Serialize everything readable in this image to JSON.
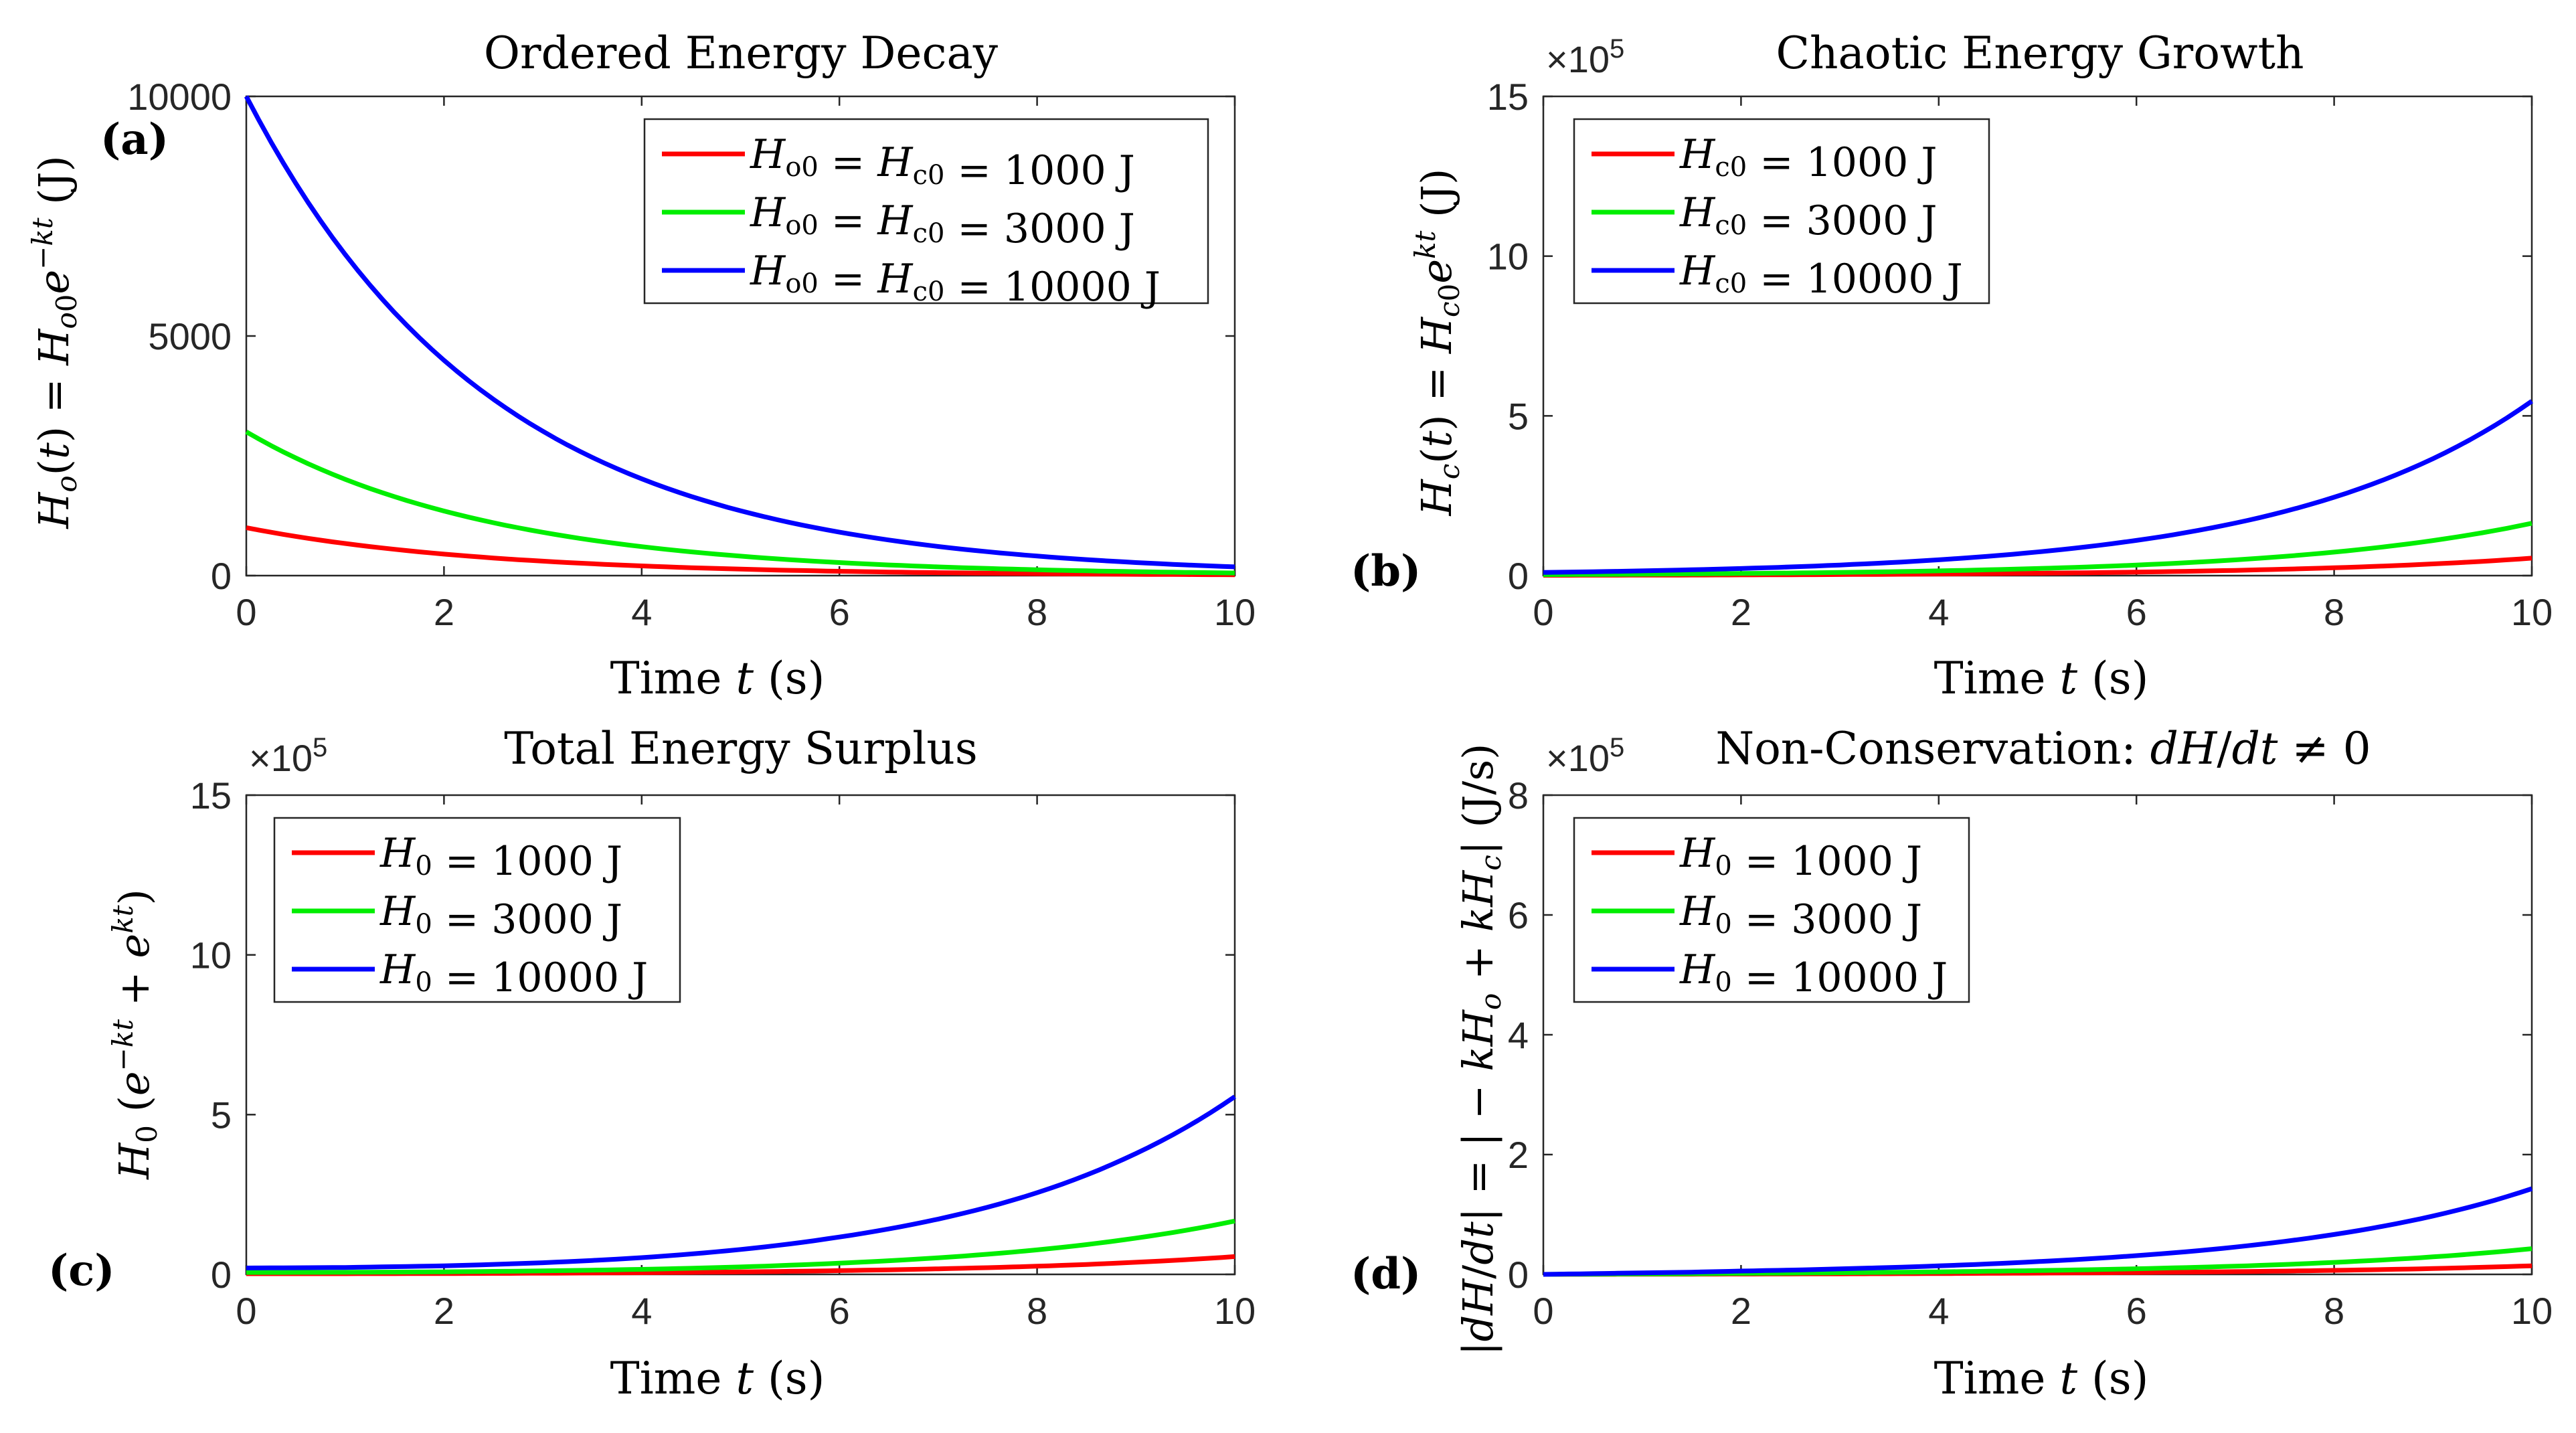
{
  "chart_data": [
    {
      "type": "line",
      "panel": "(a)",
      "title": "Ordered Energy Decay",
      "xlabel": "Time t (s)",
      "ylabel": "H_o(t) = H_o0 e^{-kt} (J)",
      "xlim": [
        0,
        10
      ],
      "ylim": [
        0,
        10000
      ],
      "xticks": [
        "0",
        "2",
        "4",
        "6",
        "8",
        "10"
      ],
      "yticks": [
        "0",
        "5000",
        "10000"
      ],
      "exponent": "",
      "grid": false,
      "legend_placement": "top-right",
      "series": [
        {
          "name": "H_o0 = H_c0 = 1000 J",
          "color": "#ff0000",
          "x": [
            0,
            1,
            2,
            3,
            4,
            5,
            6,
            7,
            8,
            9,
            10
          ],
          "y": [
            1000,
            670,
            449,
            301,
            202,
            135,
            91,
            61,
            41,
            27,
            18
          ]
        },
        {
          "name": "H_o0 = H_c0 = 3000 J",
          "color": "#00ee00",
          "x": [
            0,
            1,
            2,
            3,
            4,
            5,
            6,
            7,
            8,
            9,
            10
          ],
          "y": [
            3000,
            2010,
            1348,
            903,
            605,
            406,
            272,
            182,
            122,
            82,
            55
          ]
        },
        {
          "name": "H_o0 = H_c0 = 10000 J",
          "color": "#0000ff",
          "x": [
            0,
            1,
            2,
            3,
            4,
            5,
            6,
            7,
            8,
            9,
            10
          ],
          "y": [
            10000,
            6703,
            4493,
            3012,
            2019,
            1353,
            907,
            608,
            408,
            273,
            183
          ]
        }
      ]
    },
    {
      "type": "line",
      "panel": "(b)",
      "title": "Chaotic Energy Growth",
      "xlabel": "Time t (s)",
      "ylabel": "H_c(t) = H_c0 e^{kt} (J)",
      "xlim": [
        0,
        10
      ],
      "ylim": [
        0,
        15
      ],
      "xticks": [
        "0",
        "2",
        "4",
        "6",
        "8",
        "10"
      ],
      "yticks": [
        "0",
        "5",
        "10",
        "15"
      ],
      "exponent": "5",
      "grid": false,
      "legend_placement": "top-left",
      "series": [
        {
          "name": "H_c0 = 1000 J",
          "color": "#ff0000",
          "x": [
            0,
            1,
            2,
            3,
            4,
            5,
            6,
            7,
            8,
            9,
            10
          ],
          "y": [
            0.01,
            0.0149,
            0.0223,
            0.0332,
            0.0495,
            0.0739,
            0.1102,
            0.1644,
            0.2453,
            0.3659,
            0.546
          ]
        },
        {
          "name": "H_c0 = 3000 J",
          "color": "#00ee00",
          "x": [
            0,
            1,
            2,
            3,
            4,
            5,
            6,
            7,
            8,
            9,
            10
          ],
          "y": [
            0.03,
            0.0448,
            0.0668,
            0.0996,
            0.1486,
            0.2217,
            0.3307,
            0.4933,
            0.7358,
            1.0977,
            1.6379
          ]
        },
        {
          "name": "H_c0 = 10000 J",
          "color": "#0000ff",
          "x": [
            0,
            1,
            2,
            3,
            4,
            5,
            6,
            7,
            8,
            9,
            10
          ],
          "y": [
            0.1,
            0.1492,
            0.2226,
            0.332,
            0.4953,
            0.7389,
            1.1023,
            1.6444,
            2.4533,
            3.6598,
            5.4598
          ]
        }
      ]
    },
    {
      "type": "line",
      "panel": "(c)",
      "title": "Total Energy Surplus",
      "xlabel": "Time t (s)",
      "ylabel": "H_0 (e^{-kt} + e^{kt})",
      "xlim": [
        0,
        10
      ],
      "ylim": [
        0,
        15
      ],
      "xticks": [
        "0",
        "2",
        "4",
        "6",
        "8",
        "10"
      ],
      "yticks": [
        "0",
        "5",
        "10",
        "15"
      ],
      "exponent": "5",
      "grid": false,
      "legend_placement": "top-left",
      "series": [
        {
          "name": "H_0 = 1000 J",
          "color": "#ff0000",
          "x": [
            0,
            1,
            2,
            3,
            4,
            5,
            6,
            7,
            8,
            9,
            10
          ],
          "y": [
            0.02,
            0.0216,
            0.0267,
            0.0364,
            0.0524,
            0.0778,
            0.117,
            0.1731,
            0.2557,
            0.3784,
            0.5563
          ]
        },
        {
          "name": "H_0 = 3000 J",
          "color": "#00ee00",
          "x": [
            0,
            1,
            2,
            3,
            4,
            5,
            6,
            7,
            8,
            9,
            10
          ],
          "y": [
            0.06,
            0.0649,
            0.0801,
            0.1091,
            0.1573,
            0.2335,
            0.351,
            0.5193,
            0.7671,
            1.1352,
            1.6689
          ]
        },
        {
          "name": "H_0 = 10000 J",
          "color": "#0000ff",
          "x": [
            0,
            1,
            2,
            3,
            4,
            5,
            6,
            7,
            8,
            9,
            10
          ],
          "y": [
            0.2,
            0.2163,
            0.267,
            0.3637,
            0.5244,
            0.7783,
            1.1699,
            1.731,
            2.557,
            3.784,
            5.563
          ]
        }
      ]
    },
    {
      "type": "line",
      "panel": "(d)",
      "title": "Non-Conservation: dH/dt ≠ 0",
      "xlabel": "Time t (s)",
      "ylabel": "|dH/dt| = | - kH_o + kH_c| (J/s)",
      "xlim": [
        0,
        10
      ],
      "ylim": [
        0,
        8
      ],
      "xticks": [
        "0",
        "2",
        "4",
        "6",
        "8",
        "10"
      ],
      "yticks": [
        "0",
        "2",
        "4",
        "6",
        "8"
      ],
      "exponent": "5",
      "grid": false,
      "legend_placement": "top-left",
      "series": [
        {
          "name": "H_0 = 1000 J",
          "color": "#ff0000",
          "x": [
            0,
            1,
            2,
            3,
            4,
            5,
            6,
            7,
            8,
            9,
            10
          ],
          "y": [
            0,
            0.0025,
            0.0056,
            0.0092,
            0.0142,
            0.0213,
            0.0313,
            0.0456,
            0.0666,
            0.0974,
            0.143
          ]
        },
        {
          "name": "H_0 = 3000 J",
          "color": "#00ee00",
          "x": [
            0,
            1,
            2,
            3,
            4,
            5,
            6,
            7,
            8,
            9,
            10
          ],
          "y": [
            0,
            0.0075,
            0.0168,
            0.0276,
            0.0426,
            0.0639,
            0.0939,
            0.1368,
            0.1998,
            0.2922,
            0.429
          ]
        },
        {
          "name": "H_0 = 10000 J",
          "color": "#0000ff",
          "x": [
            0,
            1,
            2,
            3,
            4,
            5,
            6,
            7,
            8,
            9,
            10
          ],
          "y": [
            0,
            0.025,
            0.056,
            0.092,
            0.142,
            0.213,
            0.313,
            0.456,
            0.666,
            0.974,
            1.43
          ]
        }
      ]
    }
  ]
}
